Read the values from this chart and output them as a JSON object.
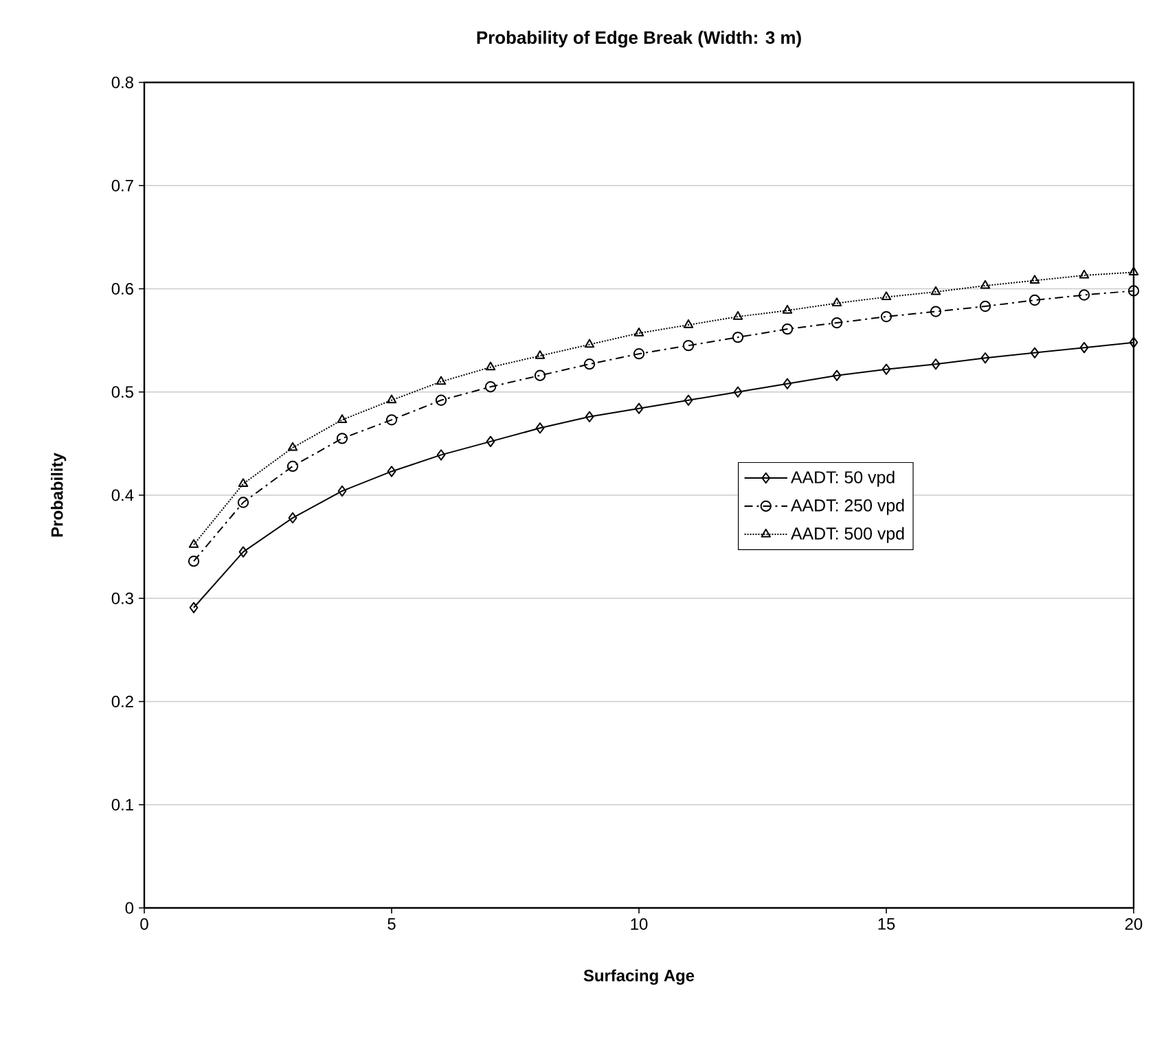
{
  "chart_data": {
    "type": "line",
    "title": "Probability of Edge Break (Width: 3 m)",
    "xlabel": "Surfacing Age",
    "ylabel": "Probability",
    "x": [
      1,
      2,
      3,
      4,
      5,
      6,
      7,
      8,
      9,
      10,
      11,
      12,
      13,
      14,
      15,
      16,
      17,
      18,
      19,
      20
    ],
    "series": [
      {
        "name": "AADT: 50 vpd",
        "color": "#000000",
        "marker": "diamond",
        "line_style": "solid",
        "values": [
          0.291,
          0.345,
          0.378,
          0.404,
          0.423,
          0.439,
          0.452,
          0.465,
          0.476,
          0.484,
          0.492,
          0.5,
          0.508,
          0.516,
          0.522,
          0.527,
          0.533,
          0.538,
          0.543,
          0.548
        ]
      },
      {
        "name": "AADT: 250 vpd",
        "color": "#000000",
        "marker": "circle",
        "line_style": "dashdot",
        "values": [
          0.336,
          0.393,
          0.428,
          0.455,
          0.473,
          0.492,
          0.505,
          0.516,
          0.527,
          0.537,
          0.545,
          0.553,
          0.561,
          0.567,
          0.573,
          0.578,
          0.583,
          0.589,
          0.594,
          0.598
        ]
      },
      {
        "name": "AADT: 500 vpd",
        "color": "#000000",
        "marker": "triangle",
        "line_style": "dotted",
        "values": [
          0.352,
          0.411,
          0.446,
          0.473,
          0.492,
          0.51,
          0.524,
          0.535,
          0.546,
          0.557,
          0.565,
          0.573,
          0.579,
          0.586,
          0.592,
          0.597,
          0.603,
          0.608,
          0.613,
          0.616
        ]
      }
    ],
    "xlim": [
      0,
      20
    ],
    "xticks": [
      0,
      5,
      10,
      15,
      20
    ],
    "ylim": [
      0,
      0.8
    ],
    "yticks": [
      0,
      0.1,
      0.2,
      0.3,
      0.4,
      0.5,
      0.6,
      0.7,
      0.8
    ],
    "grid": "y",
    "legend": "right"
  }
}
